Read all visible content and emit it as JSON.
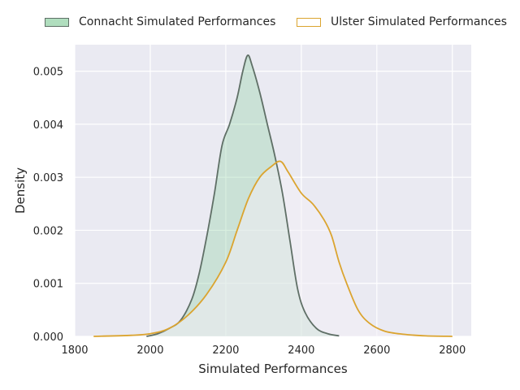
{
  "chart_data": {
    "type": "area",
    "title": "",
    "xlabel": "Simulated Performances",
    "ylabel": "Density",
    "xlim": [
      1800,
      2850
    ],
    "ylim": [
      0,
      0.0055
    ],
    "xticks": [
      1800,
      2000,
      2200,
      2400,
      2600,
      2800
    ],
    "xtick_labels": [
      "1800",
      "2000",
      "2200",
      "2400",
      "2600",
      "2800"
    ],
    "yticks": [
      0,
      0.001,
      0.002,
      0.003,
      0.004,
      0.005
    ],
    "ytick_labels": [
      "0.000",
      "0.001",
      "0.002",
      "0.003",
      "0.004",
      "0.005"
    ],
    "grid": true,
    "legend_position": "top-center",
    "series": [
      {
        "name": "Connacht Simulated Performances",
        "fill": "#8fd0a3",
        "line": "#5f6f66",
        "points": [
          [
            1990,
            0
          ],
          [
            2020,
            5e-05
          ],
          [
            2050,
            0.00015
          ],
          [
            2080,
            0.0003
          ],
          [
            2110,
            0.0007
          ],
          [
            2130,
            0.0012
          ],
          [
            2150,
            0.0019
          ],
          [
            2170,
            0.0027
          ],
          [
            2190,
            0.0036
          ],
          [
            2210,
            0.004
          ],
          [
            2230,
            0.0045
          ],
          [
            2245,
            0.005
          ],
          [
            2258,
            0.0053
          ],
          [
            2270,
            0.0051
          ],
          [
            2290,
            0.0046
          ],
          [
            2310,
            0.004
          ],
          [
            2330,
            0.0034
          ],
          [
            2350,
            0.0027
          ],
          [
            2370,
            0.0018
          ],
          [
            2390,
            0.0009
          ],
          [
            2410,
            0.00045
          ],
          [
            2440,
            0.00015
          ],
          [
            2470,
            5e-05
          ],
          [
            2500,
            1e-05
          ]
        ]
      },
      {
        "name": "Ulster Simulated Performances",
        "fill": "#f3eef5",
        "line": "#dba42f",
        "points": [
          [
            1850,
            0
          ],
          [
            1950,
            2e-05
          ],
          [
            2000,
            5e-05
          ],
          [
            2050,
            0.00015
          ],
          [
            2100,
            0.0004
          ],
          [
            2150,
            0.0008
          ],
          [
            2200,
            0.0014
          ],
          [
            2230,
            0.002
          ],
          [
            2260,
            0.0026
          ],
          [
            2290,
            0.003
          ],
          [
            2320,
            0.0032
          ],
          [
            2345,
            0.0033
          ],
          [
            2365,
            0.0031
          ],
          [
            2400,
            0.0027
          ],
          [
            2430,
            0.0025
          ],
          [
            2460,
            0.0022
          ],
          [
            2480,
            0.0019
          ],
          [
            2500,
            0.0014
          ],
          [
            2520,
            0.001
          ],
          [
            2550,
            0.0005
          ],
          [
            2580,
            0.00025
          ],
          [
            2620,
            0.0001
          ],
          [
            2670,
            4e-05
          ],
          [
            2730,
            1e-05
          ],
          [
            2800,
            0
          ]
        ]
      }
    ]
  }
}
